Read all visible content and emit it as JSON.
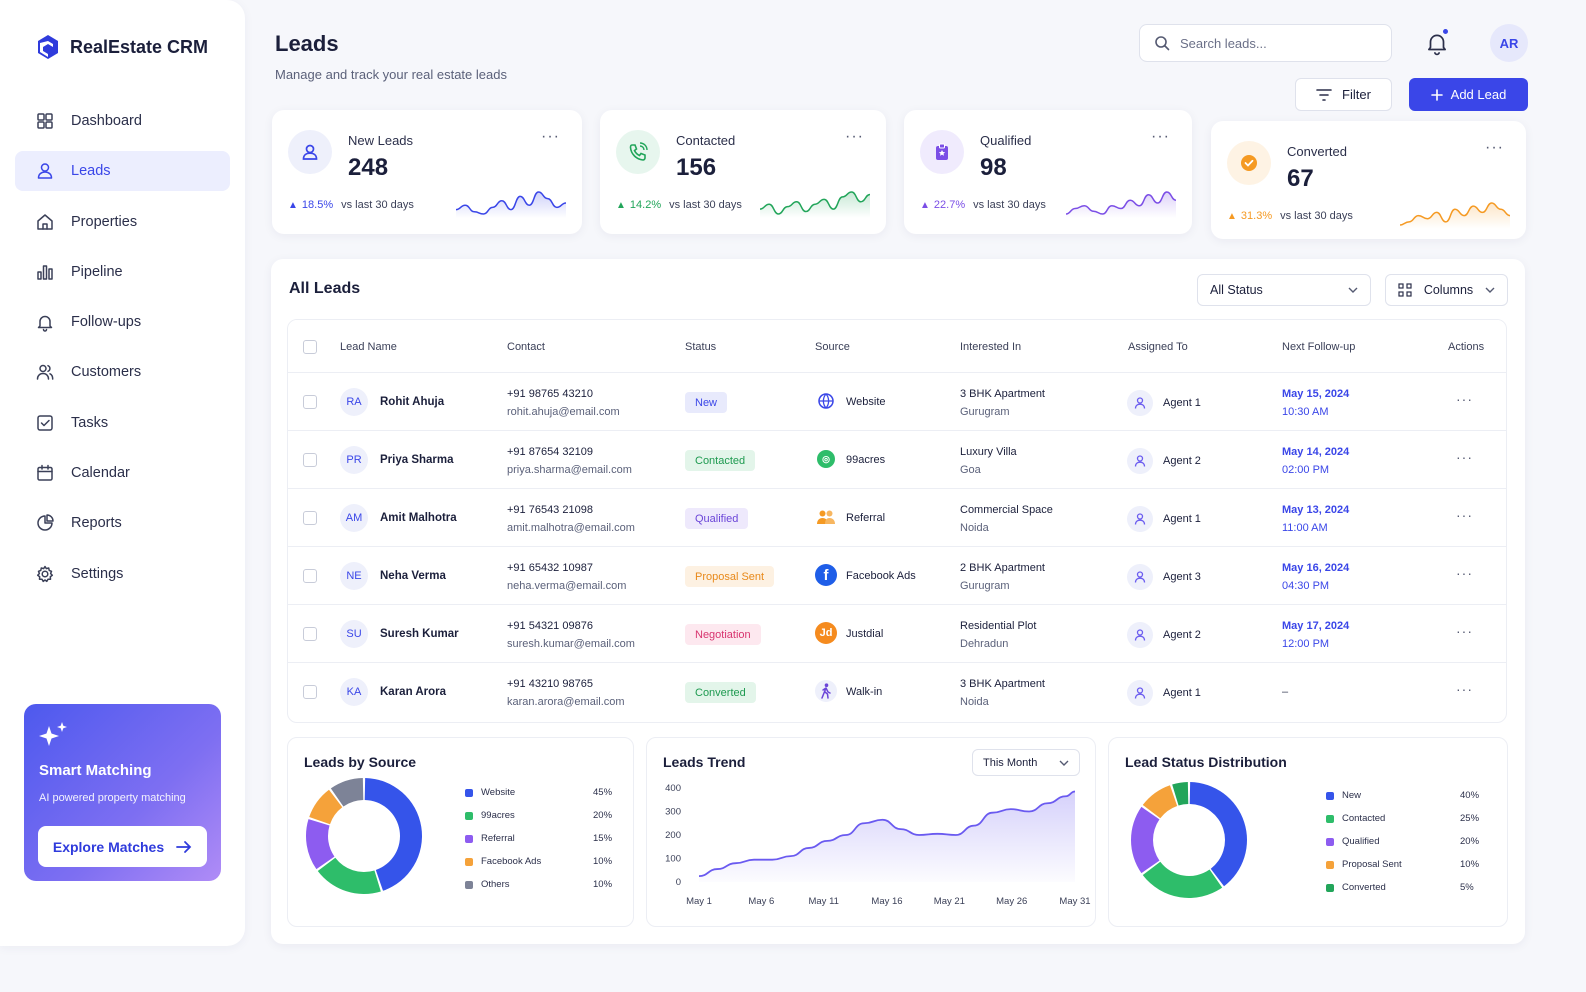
{
  "brand": {
    "name": "RealEstate CRM"
  },
  "nav": [
    {
      "label": "Dashboard",
      "icon": "grid-icon"
    },
    {
      "label": "Leads",
      "icon": "user-icon",
      "active": true
    },
    {
      "label": "Properties",
      "icon": "home-icon"
    },
    {
      "label": "Pipeline",
      "icon": "bar-chart-icon"
    },
    {
      "label": "Follow-ups",
      "icon": "bell-icon"
    },
    {
      "label": "Customers",
      "icon": "users-icon"
    },
    {
      "label": "Tasks",
      "icon": "checkbox-icon"
    },
    {
      "label": "Calendar",
      "icon": "calendar-icon"
    },
    {
      "label": "Reports",
      "icon": "pie-chart-icon"
    },
    {
      "label": "Settings",
      "icon": "gear-icon"
    }
  ],
  "promo": {
    "title": "Smart Matching",
    "subtitle": "AI powered property matching",
    "button": "Explore Matches"
  },
  "header": {
    "title": "Leads",
    "subtitle": "Manage and track your real estate leads",
    "search_placeholder": "Search leads...",
    "avatar": "AR",
    "filter": "Filter",
    "add": "Add Lead"
  },
  "stats": [
    {
      "label": "New Leads",
      "value": "248",
      "delta": "18.5%",
      "vs": "vs last 30 days",
      "color": "#3a46e8",
      "bg": "#eef0fb",
      "icon": "user-icon",
      "spark": [
        10,
        12,
        9,
        8,
        11,
        14,
        10,
        16,
        12,
        18,
        15,
        11,
        13
      ]
    },
    {
      "label": "Contacted",
      "value": "156",
      "delta": "14.2%",
      "vs": "vs last 30 days",
      "color": "#22a55a",
      "bg": "#e7f6ee",
      "icon": "phone-icon",
      "spark": [
        10,
        12,
        8,
        11,
        13,
        9,
        12,
        14,
        10,
        15,
        17,
        13,
        16
      ]
    },
    {
      "label": "Qualified",
      "value": "98",
      "delta": "22.7%",
      "vs": "vs last 30 days",
      "color": "#7b4ee6",
      "bg": "#f0ebfd",
      "icon": "badge-icon",
      "spark": [
        9,
        11,
        12,
        10,
        9,
        12,
        11,
        14,
        12,
        16,
        13,
        17,
        14
      ]
    },
    {
      "label": "Converted",
      "value": "67",
      "delta": "31.3%",
      "vs": "vs last 30 days",
      "color": "#f59a23",
      "bg": "#fef3e4",
      "icon": "check-circle-icon",
      "spark": [
        9,
        10,
        12,
        11,
        13,
        10,
        14,
        12,
        15,
        13,
        16,
        14,
        12
      ]
    }
  ],
  "table": {
    "title": "All Leads",
    "status_filter": "All Status",
    "columns_btn": "Columns",
    "headers": [
      "Lead Name",
      "Contact",
      "Status",
      "Source",
      "Interested In",
      "Assigned To",
      "Next Follow-up",
      "Actions"
    ],
    "rows": [
      {
        "initials": "RA",
        "name": "Rohit Ahuja",
        "phone": "+91 98765 43210",
        "email": "rohit.ahuja@email.com",
        "status": "New",
        "status_color": "#3a46e8",
        "status_bg": "#e8eafc",
        "source": "Website",
        "source_icon": "globe-icon",
        "interest": "3 BHK Apartment",
        "location": "Gurugram",
        "agent": "Agent 1",
        "date": "May 15, 2024",
        "time": "10:30 AM"
      },
      {
        "initials": "PR",
        "name": "Priya Sharma",
        "phone": "+91 87654 32109",
        "email": "priya.sharma@email.com",
        "status": "Contacted",
        "status_color": "#1e9a50",
        "status_bg": "#e3f5ea",
        "source": "99acres",
        "source_icon": "99acres-icon",
        "interest": "Luxury Villa",
        "location": "Goa",
        "agent": "Agent 2",
        "date": "May 14, 2024",
        "time": "02:00 PM"
      },
      {
        "initials": "AM",
        "name": "Amit Malhotra",
        "phone": "+91 76543 21098",
        "email": "amit.malhotra@email.com",
        "status": "Qualified",
        "status_color": "#6b45d8",
        "status_bg": "#eee9fc",
        "source": "Referral",
        "source_icon": "referral-icon",
        "interest": "Commercial Space",
        "location": "Noida",
        "agent": "Agent 1",
        "date": "May 13, 2024",
        "time": "11:00 AM"
      },
      {
        "initials": "NE",
        "name": "Neha Verma",
        "phone": "+91 65432 10987",
        "email": "neha.verma@email.com",
        "status": "Proposal Sent",
        "status_color": "#e8891a",
        "status_bg": "#fdf1e2",
        "source": "Facebook Ads",
        "source_icon": "facebook-icon",
        "interest": "2 BHK Apartment",
        "location": "Gurugram",
        "agent": "Agent 3",
        "date": "May 16, 2024",
        "time": "04:30 PM"
      },
      {
        "initials": "SU",
        "name": "Suresh Kumar",
        "phone": "+91 54321 09876",
        "email": "suresh.kumar@email.com",
        "status": "Negotiation",
        "status_color": "#d8346f",
        "status_bg": "#fde8ef",
        "source": "Justdial",
        "source_icon": "justdial-icon",
        "interest": "Residential Plot",
        "location": "Dehradun",
        "agent": "Agent 2",
        "date": "May 17, 2024",
        "time": "12:00 PM"
      },
      {
        "initials": "KA",
        "name": "Karan Arora",
        "phone": "+91 43210 98765",
        "email": "karan.arora@email.com",
        "status": "Converted",
        "status_color": "#1e9a50",
        "status_bg": "#e3f5ea",
        "source": "Walk-in",
        "source_icon": "walk-icon",
        "interest": "3 BHK Apartment",
        "location": "Noida",
        "agent": "Agent 1",
        "date": "–",
        "time": ""
      }
    ]
  },
  "source_chart": {
    "title": "Leads by Source",
    "chart_data": {
      "type": "pie",
      "categories": [
        "Website",
        "99acres",
        "Referral",
        "Facebook Ads",
        "Others"
      ],
      "values": [
        45,
        20,
        15,
        10,
        10
      ],
      "labels": [
        "45%",
        "20%",
        "15%",
        "10%",
        "10%"
      ],
      "colors": [
        "#3554ea",
        "#2ebd6a",
        "#8d5cf0",
        "#f5a23a",
        "#7d8397"
      ]
    }
  },
  "trend_chart": {
    "title": "Leads Trend",
    "period": "This Month",
    "chart_data": {
      "type": "area",
      "x": [
        "May 1",
        "May 6",
        "May 11",
        "May 16",
        "May 21",
        "May 26",
        "May 31"
      ],
      "y_ticks": [
        "0",
        "100",
        "200",
        "300",
        "400"
      ],
      "ylim": [
        0,
        400
      ],
      "points": [
        [
          0,
          25
        ],
        [
          2,
          55
        ],
        [
          4,
          80
        ],
        [
          6,
          95
        ],
        [
          8,
          95
        ],
        [
          10,
          110
        ],
        [
          12,
          145
        ],
        [
          14,
          175
        ],
        [
          16,
          200
        ],
        [
          18,
          250
        ],
        [
          20,
          265
        ],
        [
          22,
          225
        ],
        [
          24,
          200
        ],
        [
          26,
          205
        ],
        [
          28,
          200
        ],
        [
          30,
          240
        ],
        [
          32,
          295
        ],
        [
          34,
          310
        ],
        [
          36,
          300
        ],
        [
          38,
          335
        ],
        [
          40,
          365
        ],
        [
          41,
          385
        ]
      ],
      "color": "#6a5af0"
    }
  },
  "status_chart": {
    "title": "Lead Status Distribution",
    "chart_data": {
      "type": "pie",
      "categories": [
        "New",
        "Contacted",
        "Qualified",
        "Proposal Sent",
        "Converted"
      ],
      "values": [
        40,
        25,
        20,
        10,
        5
      ],
      "labels": [
        "40%",
        "25%",
        "20%",
        "10%",
        "5%"
      ],
      "colors": [
        "#3554ea",
        "#2ebd6a",
        "#8d5cf0",
        "#f5a23a",
        "#22a55a"
      ]
    }
  }
}
